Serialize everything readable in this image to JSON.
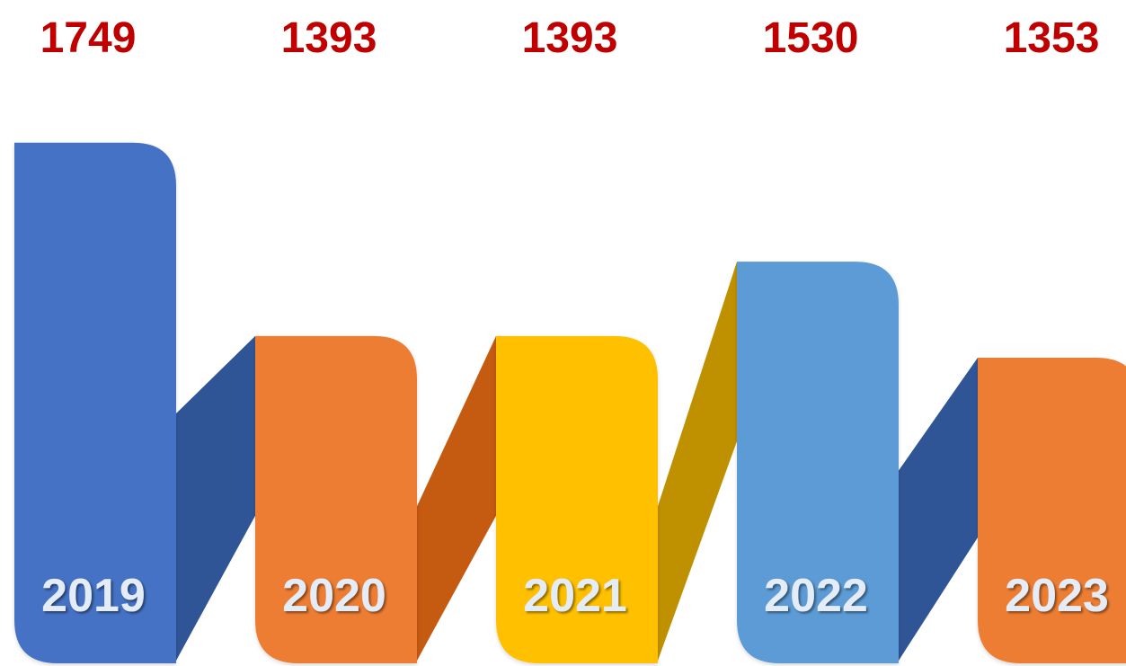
{
  "chart_data": {
    "type": "bar",
    "categories": [
      "2019",
      "2020",
      "2021",
      "2022",
      "2023"
    ],
    "values": [
      1749,
      1393,
      1393,
      1530,
      1353
    ],
    "value_labels": [
      "1749",
      "1393",
      "1393",
      "1530",
      "1353"
    ],
    "inner_marks": [
      "",
      "",
      "-",
      "",
      ""
    ],
    "bar_colors": [
      "#4472C4",
      "#ED7D31",
      "#FFC000",
      "#5B9BD5",
      "#ED7D31"
    ],
    "connector_colors": [
      "#2F5597",
      "#C55A11",
      "#BF9000",
      "#2F5597"
    ],
    "value_label_color": "#C00000",
    "year_label_color": "#E4ECF7",
    "title": "",
    "xlabel": "",
    "ylabel": "",
    "grid": false,
    "legend": "none"
  }
}
